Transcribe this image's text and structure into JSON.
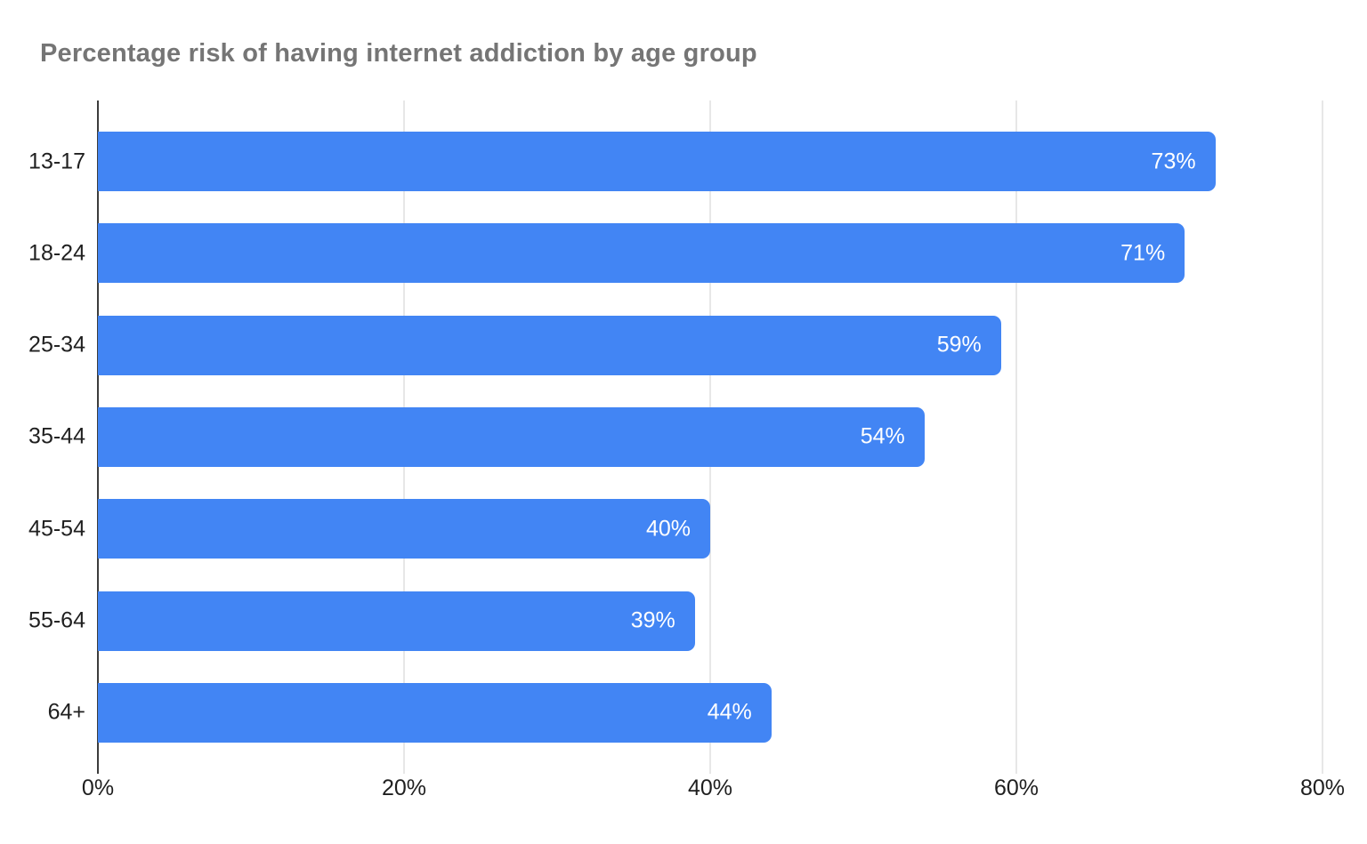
{
  "chart_data": {
    "type": "bar",
    "orientation": "horizontal",
    "title": "Percentage risk of having internet addiction by age group",
    "categories": [
      "13-17",
      "18-24",
      "25-34",
      "35-44",
      "45-54",
      "55-64",
      "64+"
    ],
    "values": [
      73,
      71,
      59,
      54,
      40,
      39,
      44
    ],
    "value_labels": [
      "73%",
      "71%",
      "59%",
      "54%",
      "40%",
      "39%",
      "44%"
    ],
    "x_ticks": [
      0,
      20,
      40,
      60,
      80
    ],
    "x_tick_labels": [
      "0%",
      "20%",
      "40%",
      "60%",
      "80%"
    ],
    "xlim": [
      0,
      80
    ],
    "xlabel": "",
    "ylabel": "",
    "grid": true,
    "legend_position": "none",
    "colors": {
      "bar": "#4285f4",
      "value_label": "#ffffff",
      "title": "#757575",
      "category_label": "#1f1f1f",
      "axis_label": "#1f1f1f",
      "axis_line": "#3c3c3c",
      "gridline": "#e7e7e7",
      "background": "#ffffff"
    }
  }
}
